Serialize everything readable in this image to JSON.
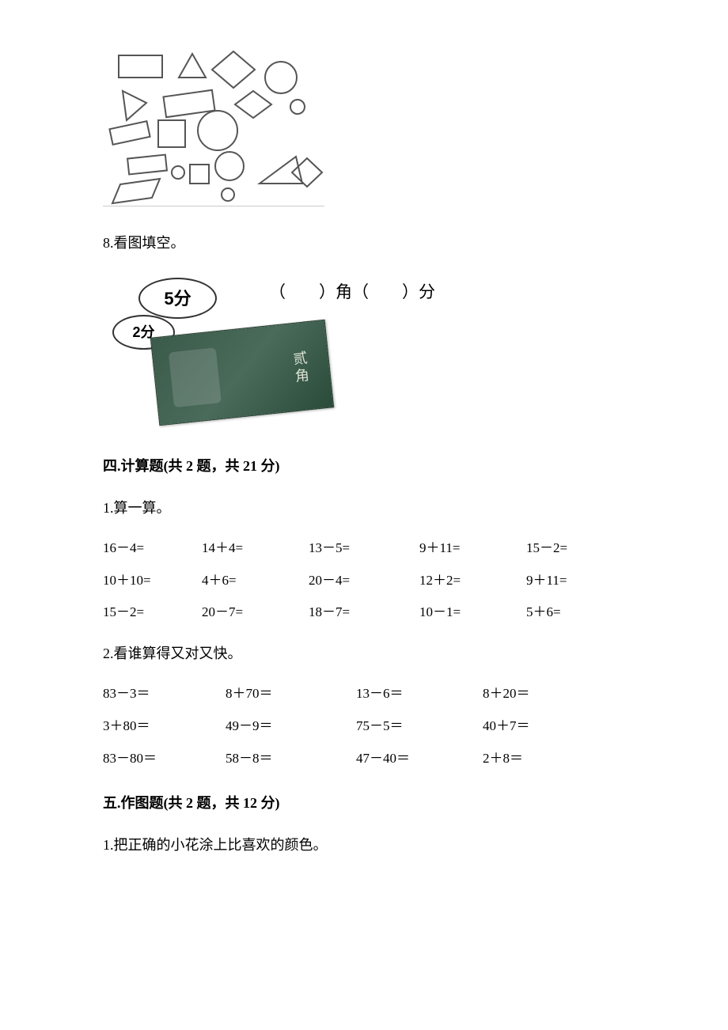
{
  "q8": {
    "label": "8.看图填空。"
  },
  "coins": {
    "coin5": "5分",
    "coin2": "2分",
    "bank": "贰角",
    "blank": "（　　）角（　　）分"
  },
  "section4": {
    "title": "四.计算题(共 2 题，共 21 分)",
    "q1": {
      "label": "1.算一算。",
      "rows": [
        [
          "16－4=",
          "14＋4=",
          "13－5=",
          "9＋11=",
          "15－2="
        ],
        [
          "10＋10=",
          "4＋6=",
          "20－4=",
          "12＋2=",
          "9＋11="
        ],
        [
          "15－2=",
          "20－7=",
          "18－7=",
          "10－1=",
          "5＋6="
        ]
      ],
      "widths": [
        125,
        135,
        140,
        135,
        110
      ]
    },
    "q2": {
      "label": "2.看谁算得又对又快。",
      "rows": [
        [
          "83－3＝",
          "8＋70＝",
          "13－6＝",
          "8＋20＝"
        ],
        [
          "3＋80＝",
          "49－9＝",
          "75－5＝",
          "40＋7＝"
        ],
        [
          "83－80＝",
          "58－8＝",
          "47－40＝",
          "2＋8＝"
        ]
      ],
      "widths": [
        155,
        165,
        160,
        130
      ]
    }
  },
  "section5": {
    "title": "五.作图题(共 2 题，共 12 分)",
    "q1": {
      "label": "1.把正确的小花涂上比喜欢的颜色。"
    }
  },
  "style": {
    "text_color": "#000000",
    "fontsize_body": 18,
    "fontsize_title": 18,
    "shape_stroke": "#555555",
    "shape_stroke_width": 2
  }
}
